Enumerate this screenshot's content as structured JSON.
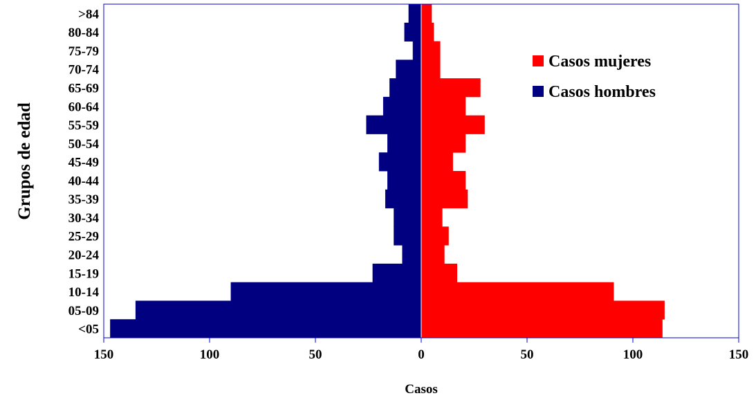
{
  "chart_data": {
    "type": "bar",
    "orientation": "horizontal",
    "layout": "population-pyramid",
    "categories": [
      "<05",
      "05-09",
      "10-14",
      "15-19",
      "20-24",
      "25-29",
      "30-34",
      "35-39",
      "40-44",
      "45-49",
      "50-54",
      "55-59",
      "60-64",
      "65-69",
      "70-74",
      "75-79",
      "80-84",
      ">84"
    ],
    "series": [
      {
        "name": "Casos mujeres",
        "side": "right",
        "color": "#ff0000",
        "values": [
          114,
          115,
          91,
          17,
          11,
          13,
          10,
          22,
          21,
          15,
          21,
          30,
          21,
          28,
          9,
          9,
          6,
          5
        ]
      },
      {
        "name": "Casos hombres",
        "side": "left",
        "color": "#000080",
        "values": [
          147,
          135,
          90,
          23,
          9,
          13,
          13,
          17,
          16,
          20,
          16,
          26,
          18,
          15,
          12,
          4,
          8,
          6
        ]
      }
    ],
    "xlabel": "Casos",
    "ylabel": "Grupos de edad",
    "xlim": [
      -150,
      150
    ],
    "xticks": [
      -150,
      -100,
      -50,
      0,
      50,
      100,
      150
    ],
    "xtick_labels": [
      "150",
      "100",
      "50",
      "0",
      "50",
      "100",
      "150"
    ],
    "grid": false,
    "legend_position": "top-right"
  }
}
